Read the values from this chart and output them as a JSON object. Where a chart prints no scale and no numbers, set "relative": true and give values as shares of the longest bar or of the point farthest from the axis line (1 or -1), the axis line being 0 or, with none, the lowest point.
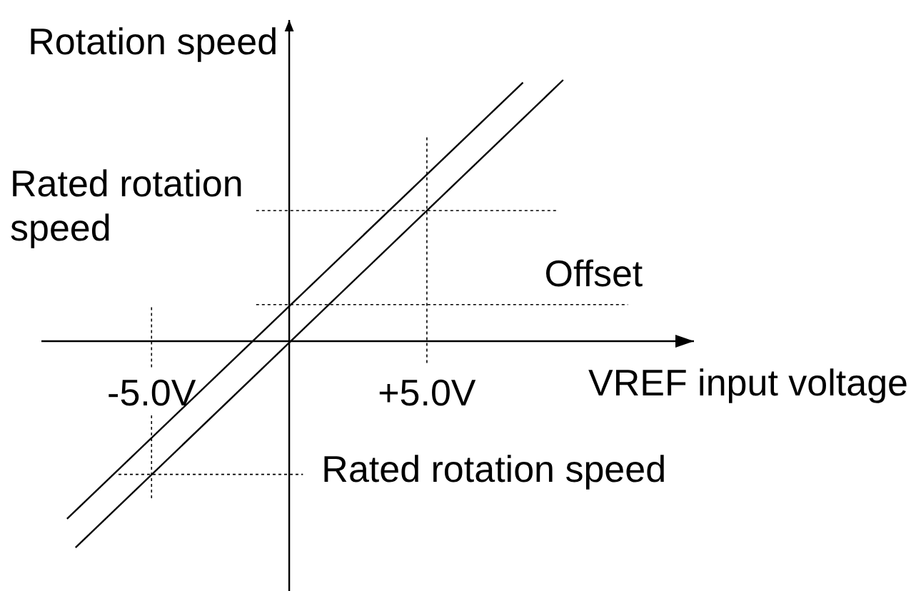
{
  "chart_data": {
    "type": "line",
    "relative": true,
    "xlabel": "VREF input voltage",
    "ylabel": "Rotation speed",
    "xlim": [
      -9,
      14.7
    ],
    "xticks": [
      {
        "value": -5,
        "label": "-5.0V"
      },
      {
        "value": 5,
        "label": "+5.0V"
      }
    ],
    "series": [
      {
        "color": "#000000",
        "x": [
          -8.07,
          8.49
        ],
        "values": [
          -0.68,
          0.99
        ]
      },
      {
        "color": "#000000",
        "x": [
          -7.76,
          9.95
        ],
        "values": [
          -0.79,
          1
        ]
      }
    ],
    "ref_lines": [
      {
        "axis": "y",
        "value": 0.5,
        "label": "Rated rotation speed",
        "line_style": "dotted"
      },
      {
        "axis": "y",
        "value": 0.14,
        "label": "Offset",
        "line_style": "dotted"
      },
      {
        "axis": "y",
        "value": -0.51,
        "label": "Rated rotation speed",
        "line_style": "dotted"
      },
      {
        "axis": "x",
        "value": 5,
        "line_style": "dotted"
      },
      {
        "axis": "x",
        "value": -5,
        "line_style": "dotted"
      }
    ],
    "marker": "none",
    "line_style": "solid"
  }
}
